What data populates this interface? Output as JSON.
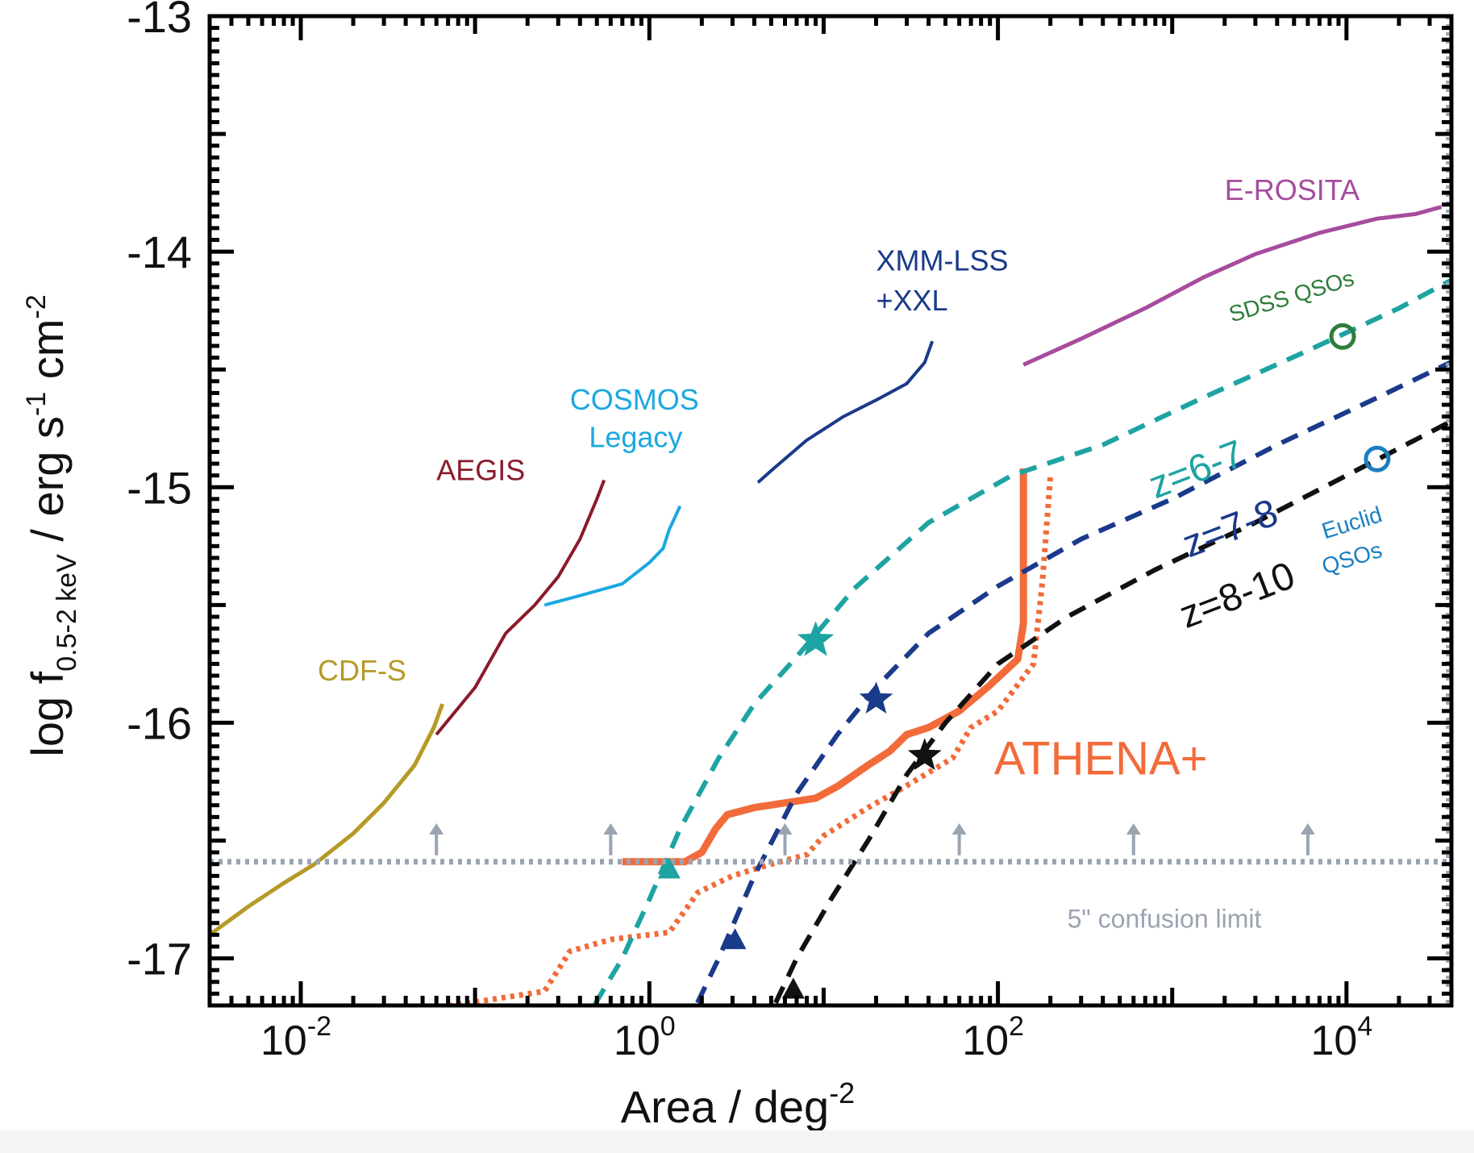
{
  "chart_data": {
    "type": "line",
    "title": "",
    "xlabel": "Area / deg",
    "xlabel_sup": "-2",
    "ylabel_parts": {
      "main": "log f",
      "sub": "0.5-2 keV",
      "unit": " / erg s",
      "sup1": "-1",
      "unit2": " cm",
      "sup2": "-2"
    },
    "x_scale": "log",
    "xlim": [
      0.003,
      40000
    ],
    "ylim": [
      -17.2,
      -13
    ],
    "x_ticks": [
      {
        "value": 0.01,
        "base": "10",
        "exp": "-2"
      },
      {
        "value": 1,
        "base": "10",
        "exp": "0"
      },
      {
        "value": 100,
        "base": "10",
        "exp": "2"
      },
      {
        "value": 10000,
        "base": "10",
        "exp": "4"
      }
    ],
    "y_ticks": [
      {
        "value": -13,
        "label": "-13"
      },
      {
        "value": -14,
        "label": "-14"
      },
      {
        "value": -15,
        "label": "-15"
      },
      {
        "value": -16,
        "label": "-16"
      },
      {
        "value": -17,
        "label": "-17"
      }
    ],
    "grid": false,
    "series": [
      {
        "name": "CDF-S",
        "color": "#b59a26",
        "style": "solid",
        "width": 5,
        "points": [
          [
            0.003,
            -16.9
          ],
          [
            0.005,
            -16.78
          ],
          [
            0.008,
            -16.68
          ],
          [
            0.012,
            -16.6
          ],
          [
            0.02,
            -16.47
          ],
          [
            0.03,
            -16.34
          ],
          [
            0.045,
            -16.18
          ],
          [
            0.058,
            -16.02
          ],
          [
            0.065,
            -15.92
          ]
        ]
      },
      {
        "name": "AEGIS",
        "color": "#8b1a2a",
        "style": "solid",
        "width": 4,
        "points": [
          [
            0.06,
            -16.05
          ],
          [
            0.1,
            -15.85
          ],
          [
            0.15,
            -15.62
          ],
          [
            0.22,
            -15.5
          ],
          [
            0.3,
            -15.38
          ],
          [
            0.4,
            -15.22
          ],
          [
            0.5,
            -15.05
          ],
          [
            0.55,
            -14.97
          ]
        ]
      },
      {
        "name": "COSMOS Legacy",
        "color": "#1ba8e0",
        "style": "solid",
        "width": 4,
        "points": [
          [
            0.25,
            -15.5
          ],
          [
            0.4,
            -15.46
          ],
          [
            0.7,
            -15.41
          ],
          [
            1.0,
            -15.32
          ],
          [
            1.2,
            -15.26
          ],
          [
            1.3,
            -15.18
          ],
          [
            1.5,
            -15.08
          ]
        ]
      },
      {
        "name": "XMM-LSS +XXL",
        "color": "#1a3a8a",
        "style": "solid",
        "width": 4,
        "points": [
          [
            4.2,
            -14.98
          ],
          [
            5,
            -14.93
          ],
          [
            8,
            -14.8
          ],
          [
            13,
            -14.7
          ],
          [
            20,
            -14.63
          ],
          [
            30,
            -14.56
          ],
          [
            38,
            -14.47
          ],
          [
            42,
            -14.38
          ]
        ]
      },
      {
        "name": "E-ROSITA",
        "color": "#a64c9e",
        "style": "solid",
        "width": 5,
        "points": [
          [
            140,
            -14.48
          ],
          [
            300,
            -14.37
          ],
          [
            700,
            -14.24
          ],
          [
            1500,
            -14.11
          ],
          [
            3000,
            -14.01
          ],
          [
            7000,
            -13.92
          ],
          [
            15000,
            -13.86
          ],
          [
            25000,
            -13.84
          ],
          [
            35000,
            -13.81
          ]
        ]
      },
      {
        "name": "ATHENA+",
        "color": "#f26b3a",
        "style": "solid",
        "width": 9,
        "points": [
          [
            0.7,
            -16.59
          ],
          [
            1.6,
            -16.59
          ],
          [
            2.0,
            -16.55
          ],
          [
            2.4,
            -16.45
          ],
          [
            2.8,
            -16.39
          ],
          [
            4,
            -16.36
          ],
          [
            6,
            -16.34
          ],
          [
            9,
            -16.32
          ],
          [
            12,
            -16.27
          ],
          [
            18,
            -16.18
          ],
          [
            24,
            -16.12
          ],
          [
            30,
            -16.05
          ],
          [
            40,
            -16.02
          ],
          [
            60,
            -15.95
          ],
          [
            90,
            -15.84
          ],
          [
            130,
            -15.73
          ],
          [
            140,
            -15.58
          ],
          [
            140,
            -14.92
          ]
        ]
      },
      {
        "name": "ATHENA+ dotted",
        "color": "#f26b3a",
        "style": "dotted",
        "width": 7,
        "points": [
          [
            0.05,
            -17.22
          ],
          [
            0.25,
            -17.14
          ],
          [
            0.35,
            -16.97
          ],
          [
            0.6,
            -16.92
          ],
          [
            1.3,
            -16.89
          ],
          [
            1.9,
            -16.72
          ],
          [
            3,
            -16.65
          ],
          [
            5,
            -16.6
          ],
          [
            8,
            -16.56
          ],
          [
            10,
            -16.48
          ],
          [
            18,
            -16.36
          ],
          [
            28,
            -16.28
          ],
          [
            55,
            -16.15
          ],
          [
            70,
            -16.02
          ],
          [
            100,
            -15.95
          ],
          [
            160,
            -15.75
          ],
          [
            180,
            -15.4
          ],
          [
            200,
            -14.95
          ]
        ]
      },
      {
        "name": "z=6-7",
        "color": "#1ea3a3",
        "style": "dashed",
        "width": 6,
        "points": [
          [
            0.4,
            -17.3
          ],
          [
            0.7,
            -17.0
          ],
          [
            1.0,
            -16.75
          ],
          [
            1.5,
            -16.45
          ],
          [
            2.5,
            -16.15
          ],
          [
            4,
            -15.92
          ],
          [
            7,
            -15.72
          ],
          [
            15,
            -15.43
          ],
          [
            40,
            -15.15
          ],
          [
            120,
            -14.95
          ],
          [
            400,
            -14.82
          ],
          [
            1500,
            -14.62
          ],
          [
            6000,
            -14.42
          ],
          [
            20000,
            -14.24
          ],
          [
            45000,
            -14.1
          ]
        ]
      },
      {
        "name": "z=7-8",
        "color": "#1a3a8a",
        "style": "dashed",
        "width": 6,
        "points": [
          [
            1.6,
            -17.3
          ],
          [
            2.5,
            -17.0
          ],
          [
            4,
            -16.65
          ],
          [
            7,
            -16.3
          ],
          [
            12,
            -16.05
          ],
          [
            20,
            -15.85
          ],
          [
            40,
            -15.62
          ],
          [
            100,
            -15.42
          ],
          [
            300,
            -15.22
          ],
          [
            1000,
            -15.05
          ],
          [
            4000,
            -14.82
          ],
          [
            15000,
            -14.62
          ],
          [
            45000,
            -14.45
          ]
        ]
      },
      {
        "name": "z=8-10",
        "color": "#111111",
        "style": "dashed",
        "width": 6,
        "points": [
          [
            4.5,
            -17.3
          ],
          [
            7,
            -17.0
          ],
          [
            11,
            -16.75
          ],
          [
            18,
            -16.5
          ],
          [
            30,
            -16.22
          ],
          [
            50,
            -16.0
          ],
          [
            100,
            -15.75
          ],
          [
            250,
            -15.55
          ],
          [
            800,
            -15.35
          ],
          [
            3000,
            -15.15
          ],
          [
            10000,
            -14.95
          ],
          [
            45000,
            -14.7
          ]
        ]
      },
      {
        "name": "5\" confusion limit",
        "color": "#9aa4b2",
        "style": "dotted",
        "width": 7,
        "points": [
          [
            0.003,
            -16.59
          ],
          [
            50000,
            -16.59
          ]
        ]
      }
    ],
    "vertical_lines": [
      {
        "x": 38000,
        "color": "#9aa4b2",
        "style": "dotted",
        "width": 4
      }
    ],
    "arrows": {
      "color": "#9aa4b2",
      "y_from": -16.59,
      "y_to": -16.44,
      "x": [
        0.06,
        0.6,
        6,
        60,
        600,
        6000
      ]
    },
    "markers": [
      {
        "type": "star",
        "x": 9,
        "y": -15.65,
        "color": "#1ea3a3",
        "size": 24
      },
      {
        "type": "star",
        "x": 20,
        "y": -15.9,
        "color": "#1a3a8a",
        "size": 22
      },
      {
        "type": "star",
        "x": 38,
        "y": -16.14,
        "color": "#111111",
        "size": 22
      },
      {
        "type": "triangle",
        "x": 1.3,
        "y": -16.62,
        "color": "#1ea3a3",
        "size": 14
      },
      {
        "type": "triangle",
        "x": 3.1,
        "y": -16.92,
        "color": "#1a3a8a",
        "size": 14
      },
      {
        "type": "triangle",
        "x": 6.7,
        "y": -17.13,
        "color": "#111111",
        "size": 14
      },
      {
        "type": "circle",
        "x": 9500,
        "y": -14.36,
        "color": "#2e7d3a",
        "size": 14
      },
      {
        "type": "circle",
        "x": 15000,
        "y": -14.88,
        "color": "#1a7fc1",
        "size": 14
      }
    ],
    "annotations": [
      {
        "text": "E-ROSITA",
        "color": "#a64c9e",
        "size": 36,
        "x": 2000,
        "y": -13.78,
        "rot": 0
      },
      {
        "text": "XMM-LSS",
        "color": "#1a3a8a",
        "size": 36,
        "x": 20,
        "y": -14.08,
        "rot": 0
      },
      {
        "text": "+XXL",
        "color": "#1a3a8a",
        "size": 36,
        "x": 20,
        "y": -14.25,
        "rot": 0
      },
      {
        "text": "COSMOS",
        "color": "#1ba8e0",
        "size": 36,
        "x": 0.35,
        "y": -14.67,
        "rot": 0
      },
      {
        "text": "Legacy",
        "color": "#1ba8e0",
        "size": 36,
        "x": 0.45,
        "y": -14.83,
        "rot": 0
      },
      {
        "text": "AEGIS",
        "color": "#8b1a2a",
        "size": 36,
        "x": 0.06,
        "y": -14.97,
        "rot": 0
      },
      {
        "text": "CDF-S",
        "color": "#b59a26",
        "size": 36,
        "x": 0.0125,
        "y": -15.82,
        "rot": 0
      },
      {
        "text": "ATHENA+",
        "color": "#f26b3a",
        "size": 58,
        "x": 95,
        "y": -16.22,
        "rot": 0
      },
      {
        "text": "SDSS QSOs",
        "color": "#2e7d3a",
        "size": 28,
        "x": 2200,
        "y": -14.3,
        "rot": -17
      },
      {
        "text": "z=6-7",
        "color": "#1ea3a3",
        "size": 48,
        "x": 800,
        "y": -15.05,
        "rot": -21
      },
      {
        "text": "z=7-8",
        "color": "#1a3a8a",
        "size": 48,
        "x": 1250,
        "y": -15.3,
        "rot": -21
      },
      {
        "text": "z=8-10",
        "color": "#111111",
        "size": 48,
        "x": 1200,
        "y": -15.6,
        "rot": -21
      },
      {
        "text": "Euclid",
        "color": "#1a7fc1",
        "size": 28,
        "x": 7500,
        "y": -15.22,
        "rot": -17
      },
      {
        "text": "QSOs",
        "color": "#1a7fc1",
        "size": 28,
        "x": 7500,
        "y": -15.37,
        "rot": -17
      },
      {
        "text": "5\" confusion limit",
        "color": "#9aa4b2",
        "size": 32,
        "x": 250,
        "y": -16.87,
        "rot": 0
      }
    ]
  }
}
